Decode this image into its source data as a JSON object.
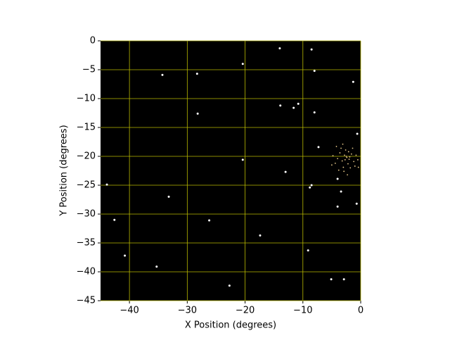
{
  "chart_data": {
    "type": "scatter",
    "xlabel": "X Position (degrees)",
    "ylabel": "Y Position (degrees)",
    "xlim": [
      -45,
      0
    ],
    "ylim": [
      -45,
      0
    ],
    "xticks": [
      {
        "value": -40,
        "label": "−40"
      },
      {
        "value": -30,
        "label": "−30"
      },
      {
        "value": -20,
        "label": "−20"
      },
      {
        "value": -10,
        "label": "−10"
      },
      0
    ],
    "yticks": [
      0,
      {
        "value": -5,
        "label": "−5"
      },
      {
        "value": -10,
        "label": "−10"
      },
      {
        "value": -15,
        "label": "−15"
      },
      {
        "value": -20,
        "label": "−20"
      },
      {
        "value": -25,
        "label": "−25"
      },
      {
        "value": -30,
        "label": "−30"
      },
      {
        "value": -35,
        "label": "−35"
      },
      {
        "value": -40,
        "label": "−40"
      },
      {
        "value": -45,
        "label": "−45"
      }
    ],
    "grid": true,
    "grid_color": "#b8b800",
    "background": "#000000",
    "series": [
      {
        "color": "#ffffff",
        "x": [
          -14.0,
          -8.5,
          -34.3,
          -28.3,
          -20.4,
          -8.0,
          -1.3,
          -13.9,
          -11.6,
          -10.8,
          -8.0,
          -28.2,
          -20.4,
          -13.0,
          -7.3,
          -0.6,
          -8.8,
          -8.5,
          -4.0,
          -3.4,
          -4.0,
          -0.7,
          -33.2,
          -43.9,
          -42.6,
          -26.2,
          -17.4,
          -9.1,
          -40.8,
          -35.3,
          -22.7,
          -5.1,
          -2.9
        ],
        "values": [
          -1.3,
          -1.5,
          -5.9,
          -5.7,
          -4.0,
          -5.2,
          -7.1,
          -11.2,
          -11.6,
          -10.9,
          -12.4,
          -12.6,
          -20.6,
          -22.7,
          -18.4,
          -16.1,
          -25.4,
          -25.0,
          -23.9,
          -26.1,
          -28.7,
          -28.2,
          -27.0,
          -24.9,
          -31.0,
          -31.1,
          -33.7,
          -36.3,
          -37.2,
          -39.1,
          -42.4,
          -41.3,
          -41.3
        ]
      },
      {
        "color": "#e6c88a",
        "x": [
          -2.4,
          -2.0,
          -2.8,
          -3.2,
          -1.6,
          -2.2,
          -3.6,
          -1.2,
          -2.6,
          -4.0,
          -1.8,
          -3.0,
          -0.8,
          -4.4,
          -2.1,
          -3.4,
          -1.0,
          -2.9,
          -4.8,
          -0.5,
          -2.5,
          -1.9,
          -2.7,
          -3.8,
          -1.4,
          -0.4,
          -4.2,
          -2.3,
          -3.1,
          -5.0
        ],
        "values": [
          -20.2,
          -20.5,
          -19.8,
          -20.8,
          -19.6,
          -21.3,
          -19.4,
          -20.9,
          -18.9,
          -20.4,
          -22.0,
          -21.9,
          -19.8,
          -21.2,
          -19.2,
          -18.6,
          -21.7,
          -22.6,
          -19.9,
          -20.6,
          -20.0,
          -20.1,
          -20.6,
          -22.4,
          -18.6,
          -21.9,
          -18.3,
          -23.2,
          -17.9,
          -21.5
        ]
      }
    ]
  }
}
